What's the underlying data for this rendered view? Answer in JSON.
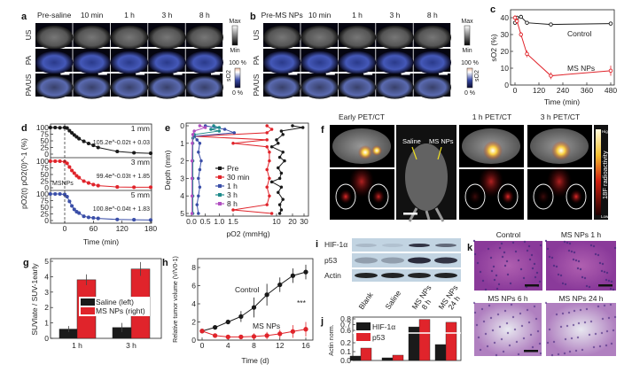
{
  "panel_labels": {
    "a": "a",
    "b": "b",
    "c": "c",
    "d": "d",
    "e": "e",
    "f": "f",
    "g": "g",
    "h": "h",
    "i": "i",
    "j": "j",
    "k": "k"
  },
  "panel_a": {
    "columns": [
      "Pre-saline",
      "10 min",
      "1 h",
      "3 h",
      "8 h"
    ],
    "rows": [
      "US",
      "PA",
      "PA/US"
    ],
    "gray_bar": {
      "max": "Max",
      "min": "Min"
    },
    "so2_bar": {
      "max": "100 %",
      "min": "0 %",
      "label": "sO2"
    }
  },
  "panel_b": {
    "columns": [
      "Pre-MS NPs",
      "10 min",
      "1 h",
      "3 h",
      "8 h"
    ],
    "rows": [
      "US",
      "PA",
      "PA/US"
    ],
    "gray_bar": {
      "max": "Max",
      "min": "Min"
    },
    "so2_bar": {
      "max": "100 %",
      "min": "0 %",
      "label": "sO2"
    }
  },
  "panel_f": {
    "titles": [
      "Early PET/CT",
      "1 h PET/CT",
      "3 h PET/CT"
    ],
    "arrows": [
      "Saline",
      "MS NPs"
    ],
    "colorbar": {
      "high": "High",
      "low": "Low",
      "label": "18F radioactivity"
    }
  },
  "panel_i": {
    "rows": [
      "HIF-1α",
      "p53",
      "Actin"
    ],
    "lanes": [
      "Blank",
      "Saline",
      "MS NPs 8 h",
      "MS NPs 24 h"
    ]
  },
  "panel_k": {
    "titles": [
      "Control",
      "MS NPs 1 h",
      "MS NPs 6 h",
      "MS NPs 24 h"
    ]
  },
  "colors": {
    "black": "#1a1a1a",
    "red": "#e0242b",
    "blue": "#3b4fa8",
    "teal": "#1d8a8a",
    "magenta": "#b04fc0"
  },
  "chart_data": [
    {
      "id": "c",
      "type": "line",
      "xlabel": "Time (min)",
      "ylabel": "sO2 (%)",
      "xlim": [
        0,
        480
      ],
      "ylim": [
        0,
        45
      ],
      "xticks": [
        0,
        120,
        240,
        360,
        480
      ],
      "yticks": [
        0,
        10,
        20,
        30,
        40
      ],
      "series": [
        {
          "name": "Control",
          "color": "#1a1a1a",
          "x": [
            0,
            10,
            30,
            60,
            180,
            480
          ],
          "y": [
            37,
            40,
            40.5,
            37,
            36,
            36.5
          ],
          "err": [
            1,
            1,
            1,
            1,
            1,
            1
          ]
        },
        {
          "name": "MS NPs",
          "color": "#e0242b",
          "x": [
            0,
            10,
            30,
            60,
            180,
            480
          ],
          "y": [
            40,
            38,
            30,
            18.5,
            5.5,
            8.5
          ],
          "err": [
            1.5,
            1.5,
            1.5,
            2,
            2,
            3
          ]
        }
      ]
    },
    {
      "id": "d",
      "type": "line",
      "xlabel": "Time (min)",
      "ylabel": "pO2(t) pO2(0)^-1 (%)",
      "xlim": [
        -30,
        180
      ],
      "ylim": [
        0,
        100
      ],
      "xticks": [
        0,
        60,
        120,
        180
      ],
      "yticks": [
        0,
        25,
        50,
        75,
        100
      ],
      "annotation": "MSNPs",
      "series": [
        {
          "name": "1 mm",
          "color": "#1a1a1a",
          "fit": "105.2e^-0.02t + 0.03",
          "x": [
            -30,
            -20,
            -10,
            0,
            5,
            10,
            15,
            20,
            25,
            30,
            40,
            50,
            60,
            70,
            110,
            145,
            180
          ],
          "y": [
            100,
            100,
            99,
            100,
            98,
            88,
            80,
            72,
            65,
            58,
            48,
            40,
            33,
            25,
            10,
            5,
            3
          ]
        },
        {
          "name": "3 mm",
          "color": "#e0242b",
          "fit": "99.4e^-0.03t + 1.85",
          "x": [
            -30,
            -20,
            -10,
            0,
            5,
            10,
            15,
            20,
            25,
            30,
            40,
            50,
            60,
            70,
            110,
            145,
            180
          ],
          "y": [
            100,
            100,
            100,
            98,
            92,
            78,
            65,
            55,
            45,
            38,
            25,
            18,
            12,
            8,
            3,
            2,
            2
          ]
        },
        {
          "name": "5 mm",
          "color": "#3b4fa8",
          "fit": "100.8e^-0.04t + 1.83",
          "x": [
            -30,
            -20,
            -10,
            0,
            5,
            10,
            15,
            20,
            25,
            30,
            40,
            50,
            60,
            70,
            110,
            145,
            180
          ],
          "y": [
            100,
            100,
            100,
            98,
            90,
            72,
            55,
            42,
            33,
            28,
            16,
            12,
            10,
            8,
            4,
            3,
            2
          ]
        }
      ]
    },
    {
      "id": "e",
      "type": "line",
      "xlabel": "pO2 (mmHg)",
      "ylabel": "Depth (mm)",
      "xticks": [
        0.0,
        0.5,
        1.0,
        1.5,
        10,
        20,
        30
      ],
      "ylim": [
        0,
        5
      ],
      "yticks": [
        0,
        1,
        2,
        3,
        4,
        5
      ],
      "series": [
        {
          "name": "Pre",
          "color": "#1a1a1a",
          "depth": [
            0,
            0.1,
            0.3,
            0.5,
            0.8,
            1.0,
            1.2,
            1.5,
            1.8,
            2.0,
            2.4,
            2.7,
            3.0,
            3.2,
            3.5,
            3.8,
            4.2,
            4.5,
            4.8,
            5.0
          ],
          "po2": [
            20,
            29,
            13,
            14,
            10,
            11,
            9,
            14,
            12,
            15,
            11,
            13,
            12,
            9,
            13,
            11,
            14,
            12,
            13,
            12
          ]
        },
        {
          "name": "30 min",
          "color": "#e0242b",
          "depth": [
            0,
            0.2,
            0.4,
            0.6,
            0.8,
            1.0,
            1.2,
            1.5,
            2.0,
            2.5,
            3.0,
            3.5,
            4.0,
            4.5,
            4.8,
            5.0
          ],
          "po2": [
            8,
            9,
            8,
            0.1,
            8,
            1.5,
            8,
            8.5,
            8.5,
            8,
            8.5,
            8,
            8.5,
            8,
            1.5,
            9
          ]
        },
        {
          "name": "1 h",
          "color": "#3b4fa8",
          "depth": [
            0,
            0.2,
            0.4,
            0.6,
            0.8,
            1.0,
            1.5,
            2.0,
            2.5,
            3.0,
            3.5,
            4.0,
            4.5,
            5.0
          ],
          "po2": [
            0.5,
            1.2,
            1.7,
            0.1,
            0.2,
            0.3,
            0.25,
            0.35,
            0.3,
            0.25,
            0.3,
            0.25,
            0.2,
            0.25
          ]
        },
        {
          "name": "3 h",
          "color": "#1d8a8a",
          "depth": [
            0,
            0.1,
            0.2,
            0.3,
            0.5,
            0.7,
            1.0,
            2.0,
            3.0,
            4.0,
            5.0
          ],
          "po2": [
            0.8,
            1.0,
            0.7,
            1.0,
            0.1,
            0.05,
            0.05,
            0.05,
            0.05,
            0.05,
            0.05
          ]
        },
        {
          "name": "8 h",
          "color": "#b04fc0",
          "depth": [
            0,
            0.1,
            0.3,
            0.5,
            1.0,
            2.0,
            3.0,
            4.0,
            5.0
          ],
          "po2": [
            0.3,
            0.5,
            0.1,
            0.05,
            0.03,
            0.02,
            0.02,
            0.02,
            0.02
          ]
        }
      ]
    },
    {
      "id": "g",
      "type": "bar",
      "ylabel": "SUVlate / SUV-1early",
      "categories": [
        "1 h",
        "3 h"
      ],
      "ylim": [
        0,
        5
      ],
      "yticks": [
        0,
        1,
        2,
        3,
        4,
        5
      ],
      "series": [
        {
          "name": "Saline (left)",
          "color": "#1a1a1a",
          "values": [
            0.6,
            0.7
          ],
          "err": [
            0.2,
            0.3
          ]
        },
        {
          "name": "MS NPs (right)",
          "color": "#e0242b",
          "values": [
            3.8,
            4.5
          ],
          "err": [
            0.35,
            0.45
          ]
        }
      ]
    },
    {
      "id": "h",
      "type": "line",
      "xlabel": "Time (d)",
      "ylabel": "Relative tumor volume (V/V0-1)",
      "xlim": [
        0,
        16
      ],
      "ylim": [
        0,
        8
      ],
      "xticks": [
        0,
        4,
        8,
        12,
        16
      ],
      "yticks": [
        0,
        2,
        4,
        6,
        8
      ],
      "annotation": "***",
      "series": [
        {
          "name": "Control",
          "color": "#1a1a1a",
          "x": [
            0,
            2,
            4,
            6,
            8,
            10,
            12,
            14,
            16
          ],
          "y": [
            1,
            1.4,
            2,
            2.6,
            3.6,
            5,
            6.1,
            7.1,
            7.5
          ],
          "err": [
            0.1,
            0.15,
            0.25,
            0.6,
            1.1,
            1.2,
            0.8,
            0.8,
            0.8
          ]
        },
        {
          "name": "MS NPs",
          "color": "#e0242b",
          "x": [
            0,
            2,
            4,
            6,
            8,
            10,
            12,
            14,
            16
          ],
          "y": [
            1,
            0.5,
            0.35,
            0.35,
            0.4,
            0.5,
            0.7,
            0.95,
            1.2
          ],
          "err": [
            0.1,
            0.1,
            0.15,
            0.2,
            0.35,
            0.4,
            0.45,
            0.7,
            0.8
          ]
        }
      ]
    },
    {
      "id": "j",
      "type": "bar",
      "ylabel": "Actin norm.",
      "categories": [
        "Blank",
        "Saline",
        "MS NPs 8 h",
        "MS NPs 24 h"
      ],
      "yticks": [
        0.0,
        0.1,
        0.2,
        0.6,
        0.7,
        0.8
      ],
      "series": [
        {
          "name": "HIF-1α",
          "color": "#1a1a1a",
          "values": [
            0.05,
            0.03,
            0.66,
            0.18
          ]
        },
        {
          "name": "p53",
          "color": "#e0242b",
          "values": [
            0.14,
            0.06,
            0.79,
            0.74
          ]
        }
      ]
    }
  ]
}
